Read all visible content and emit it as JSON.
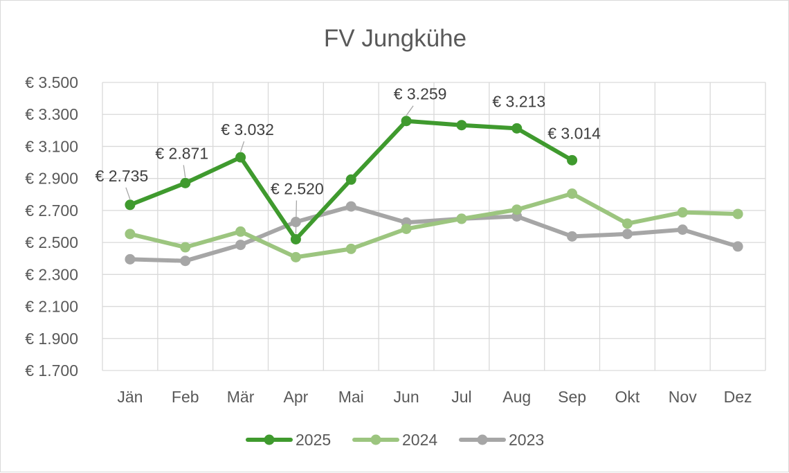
{
  "chart_data": {
    "type": "line",
    "title": "FV Jungkühe",
    "categories": [
      "Jän",
      "Feb",
      "Mär",
      "Apr",
      "Mai",
      "Jun",
      "Jul",
      "Aug",
      "Sep",
      "Okt",
      "Nov",
      "Dez"
    ],
    "y_ticks": [
      "€ 1.700",
      "€ 1.900",
      "€ 2.100",
      "€ 2.300",
      "€ 2.500",
      "€ 2.700",
      "€ 2.900",
      "€ 3.100",
      "€ 3.300",
      "€ 3.500"
    ],
    "ylim": [
      1700,
      3500
    ],
    "grid": true,
    "legend_position": "bottom",
    "series": [
      {
        "name": "2025",
        "color": "#3f9a2e",
        "values": [
          2735,
          2871,
          3032,
          2520,
          2893,
          3259,
          3233,
          3213,
          3014,
          null,
          null,
          null
        ],
        "data_labels": [
          "€ 2.735",
          "€ 2.871",
          "€ 3.032",
          "€ 2.520",
          "",
          "€ 3.259",
          "",
          "€ 3.213",
          "€ 3.014",
          "",
          "",
          ""
        ]
      },
      {
        "name": "2024",
        "color": "#9cc57f",
        "values": [
          2553,
          2470,
          2568,
          2408,
          2460,
          2585,
          2648,
          2705,
          2805,
          2618,
          2688,
          2678
        ]
      },
      {
        "name": "2023",
        "color": "#a6a6a6",
        "values": [
          2395,
          2385,
          2485,
          2628,
          2725,
          2625,
          2648,
          2663,
          2538,
          2553,
          2580,
          2475
        ]
      }
    ]
  }
}
